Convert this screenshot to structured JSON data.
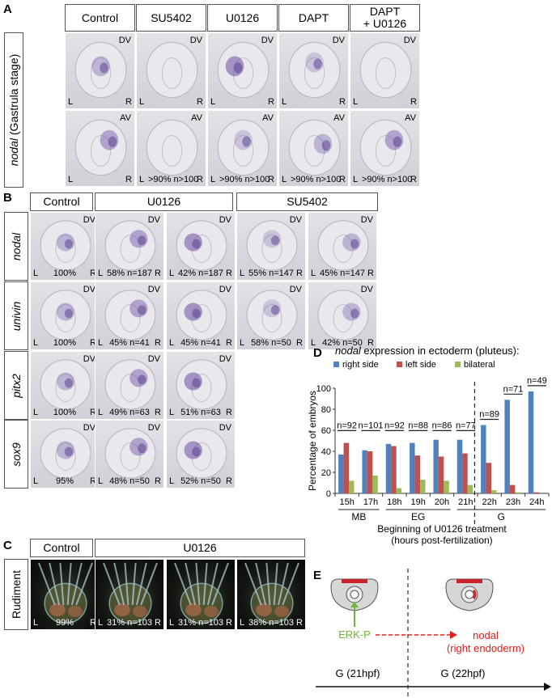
{
  "panelA": {
    "label": "A",
    "headers": [
      "Control",
      "SU5402",
      "U0126",
      "DAPT",
      "DAPT\n+ U0126"
    ],
    "row_label_gene": "nodal",
    "row_label_stage": " (Gastrula stage)",
    "views": [
      "DV",
      "AV"
    ],
    "left": "L",
    "right": "R",
    "stats": [
      "",
      ">90% n>100",
      ">90% n>100",
      ">90% n>100",
      ">90% n>100"
    ]
  },
  "panelB": {
    "label": "B",
    "headers": [
      "Control",
      "U0126",
      "SU5402"
    ],
    "view": "DV",
    "left": "L",
    "right": "R",
    "rows": [
      {
        "gene": "nodal",
        "stats": [
          "100%",
          "58% n=187",
          "42% n=187",
          "55% n=147",
          "45% n=147"
        ]
      },
      {
        "gene": "univin",
        "stats": [
          "100%",
          "45% n=41",
          "45% n=41",
          "58% n=50",
          "42% n=50"
        ]
      },
      {
        "gene": "pitx2",
        "stats": [
          "100%",
          "49% n=63",
          "51% n=63"
        ]
      },
      {
        "gene": "sox9",
        "stats": [
          "95%",
          "48% n=50",
          "52% n=50"
        ]
      }
    ]
  },
  "panelC": {
    "label": "C",
    "headers": [
      "Control",
      "U0126"
    ],
    "row_label": "Rudiment",
    "left": "L",
    "right": "R",
    "stats": [
      "99%",
      "31% n=103",
      "31% n=103",
      "38% n=103"
    ]
  },
  "panelD": {
    "label": "D",
    "chart_data": {
      "type": "bar",
      "title_italic": "nodal",
      "title_rest": " expression in ectoderm (pluteus):",
      "ylabel": "Percentage of embryos",
      "xlabel_line1": "Beginning of U0126 treatment",
      "xlabel_line2": "(hours post-fertilization)",
      "ylim": [
        0,
        100
      ],
      "categories": [
        "15h",
        "17h",
        "18h",
        "19h",
        "20h",
        "21h",
        "22h",
        "23h",
        "24h"
      ],
      "series": [
        {
          "name": "right side",
          "color": "#4f81bd",
          "values": [
            37,
            41,
            47,
            48,
            51,
            51,
            65,
            89,
            97
          ]
        },
        {
          "name": "left side",
          "color": "#c0504d",
          "values": [
            48,
            40,
            45,
            36,
            35,
            38,
            29,
            8,
            1
          ]
        },
        {
          "name": "bilateral",
          "color": "#9bbb59",
          "values": [
            12,
            17,
            5,
            13,
            12,
            8,
            3,
            1,
            0
          ]
        }
      ],
      "n_labels": [
        "n=92",
        "n=101",
        "n=92",
        "n=88",
        "n=86",
        "n=77",
        "n=89",
        "n=71",
        "n=49"
      ],
      "stages": [
        {
          "name": "MB",
          "from": 0,
          "to": 1
        },
        {
          "name": "EG",
          "from": 2,
          "to": 4
        },
        {
          "name": "G",
          "from": 5,
          "to": 8
        }
      ]
    }
  },
  "panelE": {
    "label": "E",
    "erk_label": "ERK-P",
    "nodal_label": "nodal",
    "nodal_sub": "(right endoderm)",
    "time_left": "G (21hpf)",
    "time_right": "G (22hpf)",
    "colors": {
      "erk": "#6fb33a",
      "nodal": "#e0201c",
      "band": "#c8232a"
    }
  }
}
